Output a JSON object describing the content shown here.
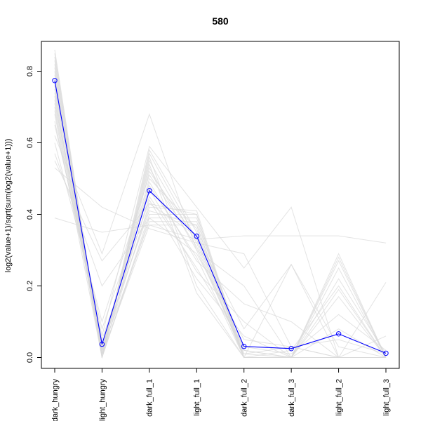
{
  "chart_data": {
    "type": "line",
    "title": "580",
    "xlabel": "",
    "ylabel": "log2(value+1)/sqrt(sum(log2(value+1)))",
    "categories": [
      "dark_hungry",
      "light_hungry",
      "dark_full_1",
      "light_full_1",
      "dark_full_2",
      "dark_full_3",
      "light_full_2",
      "light_full_3"
    ],
    "ylim": [
      -0.025,
      0.9
    ],
    "yticks": [
      0.0,
      0.2,
      0.4,
      0.6,
      0.8
    ],
    "ytick_labels": [
      "0.0",
      "0.2",
      "0.4",
      "0.6",
      "0.8"
    ],
    "grid": false,
    "legend": "none",
    "highlight": {
      "name": "580",
      "color": "#0000ff",
      "values": [
        0.774,
        0.037,
        0.466,
        0.339,
        0.031,
        0.025,
        0.066,
        0.012
      ]
    },
    "background_series_color": "#d9d9d9",
    "background_series": [
      [
        0.85,
        0.0,
        0.58,
        0.35,
        0.0,
        0.0,
        0.27,
        0.0
      ],
      [
        0.83,
        0.01,
        0.55,
        0.32,
        0.0,
        0.0,
        0.28,
        0.0
      ],
      [
        0.82,
        0.02,
        0.53,
        0.3,
        0.01,
        0.0,
        0.25,
        0.0
      ],
      [
        0.8,
        0.01,
        0.52,
        0.33,
        0.02,
        0.0,
        0.22,
        0.01
      ],
      [
        0.79,
        0.03,
        0.5,
        0.36,
        0.0,
        0.02,
        0.2,
        0.0
      ],
      [
        0.78,
        0.0,
        0.48,
        0.28,
        0.0,
        0.0,
        0.17,
        0.0
      ],
      [
        0.77,
        0.02,
        0.45,
        0.25,
        0.03,
        0.01,
        0.12,
        0.02
      ],
      [
        0.76,
        0.01,
        0.43,
        0.4,
        0.0,
        0.0,
        0.08,
        0.0
      ],
      [
        0.75,
        0.04,
        0.41,
        0.37,
        0.01,
        0.03,
        0.05,
        0.01
      ],
      [
        0.74,
        0.0,
        0.4,
        0.4,
        0.0,
        0.0,
        0.0,
        0.0
      ],
      [
        0.73,
        0.02,
        0.38,
        0.38,
        0.02,
        0.0,
        0.0,
        0.0
      ],
      [
        0.72,
        0.01,
        0.37,
        0.37,
        0.0,
        0.0,
        0.0,
        0.0
      ],
      [
        0.7,
        0.03,
        0.42,
        0.41,
        0.0,
        0.0,
        0.0,
        0.0
      ],
      [
        0.68,
        0.0,
        0.39,
        0.39,
        0.0,
        0.0,
        0.0,
        0.0
      ],
      [
        0.66,
        0.05,
        0.44,
        0.22,
        0.06,
        0.0,
        0.0,
        0.0
      ],
      [
        0.84,
        0.0,
        0.56,
        0.2,
        0.0,
        0.0,
        0.29,
        0.0
      ],
      [
        0.81,
        0.01,
        0.54,
        0.18,
        0.0,
        0.0,
        0.0,
        0.0
      ],
      [
        0.65,
        0.08,
        0.47,
        0.24,
        0.1,
        0.0,
        0.0,
        0.0
      ],
      [
        0.6,
        0.1,
        0.51,
        0.31,
        0.0,
        0.0,
        0.0,
        0.0
      ],
      [
        0.57,
        0.2,
        0.39,
        0.29,
        0.05,
        0.03,
        0.0,
        0.0
      ],
      [
        0.55,
        0.27,
        0.43,
        0.34,
        0.08,
        0.26,
        0.0,
        0.06
      ],
      [
        0.62,
        0.29,
        0.68,
        0.3,
        0.2,
        0.0,
        0.19,
        0.0
      ],
      [
        0.39,
        0.35,
        0.37,
        0.33,
        0.34,
        0.34,
        0.34,
        0.32
      ],
      [
        0.53,
        0.42,
        0.36,
        0.32,
        0.29,
        0.03,
        0.0,
        0.21
      ],
      [
        0.71,
        0.06,
        0.59,
        0.42,
        0.25,
        0.42,
        0.0,
        0.0
      ],
      [
        0.86,
        0.0,
        0.57,
        0.33,
        0.0,
        0.26,
        0.03,
        0.0
      ],
      [
        0.69,
        0.02,
        0.49,
        0.27,
        0.15,
        0.1,
        0.0,
        0.0
      ]
    ]
  }
}
